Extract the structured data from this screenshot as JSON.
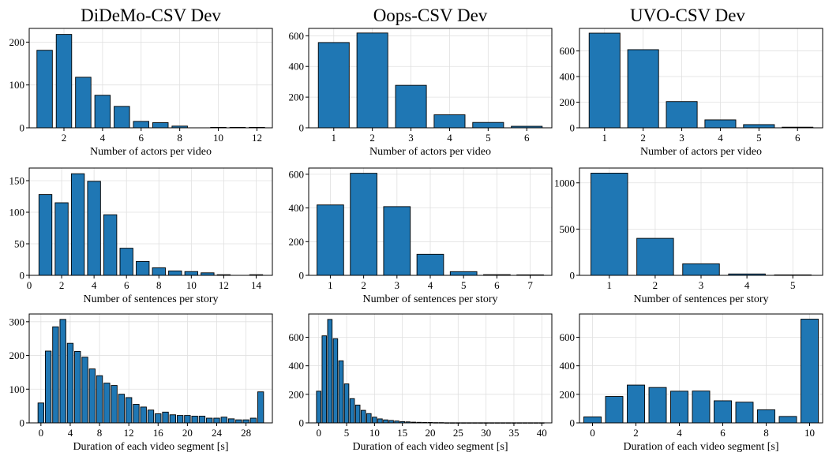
{
  "figure": {
    "column_titles": [
      "DiDeMo-CSV Dev",
      "Oops-CSV Dev",
      "UVO-CSV Dev"
    ]
  },
  "style": {
    "bar_color": "#1f77b4",
    "bar_edge": "#000000",
    "grid_color": "#e0e0e0"
  },
  "chart_data": [
    {
      "type": "bar",
      "title": "DiDeMo-CSV Dev",
      "xlabel": "Number of actors per video",
      "ylabel": "",
      "x": [
        1,
        2,
        3,
        4,
        5,
        6,
        7,
        8,
        9,
        10,
        11,
        12
      ],
      "values": [
        181,
        218,
        118,
        76,
        50,
        15,
        12,
        4,
        0,
        1,
        1,
        1
      ],
      "xlim": [
        0.2,
        12.8
      ],
      "ylim": [
        0,
        232
      ],
      "xticks": [
        2,
        4,
        6,
        8,
        10,
        12
      ],
      "yticks": [
        0,
        100,
        200
      ],
      "grid": true
    },
    {
      "type": "bar",
      "title": "Oops-CSV Dev",
      "xlabel": "Number of actors per video",
      "ylabel": "",
      "x": [
        1,
        2,
        3,
        4,
        5,
        6
      ],
      "values": [
        556,
        618,
        277,
        85,
        35,
        10
      ],
      "xlim": [
        0.35,
        6.65
      ],
      "ylim": [
        0,
        648
      ],
      "xticks": [
        1,
        2,
        3,
        4,
        5,
        6
      ],
      "yticks": [
        0,
        200,
        400,
        600
      ],
      "grid": true
    },
    {
      "type": "bar",
      "title": "UVO-CSV Dev",
      "xlabel": "Number of actors per video",
      "ylabel": "",
      "x": [
        1,
        2,
        3,
        4,
        5,
        6
      ],
      "values": [
        739,
        610,
        205,
        62,
        25,
        5
      ],
      "xlim": [
        0.35,
        6.65
      ],
      "ylim": [
        0,
        776
      ],
      "xticks": [
        1,
        2,
        3,
        4,
        5,
        6
      ],
      "yticks": [
        0,
        200,
        400,
        600
      ],
      "grid": true
    },
    {
      "type": "bar",
      "title": "",
      "xlabel": "Number of sentences per story",
      "ylabel": "",
      "x": [
        1,
        2,
        3,
        4,
        5,
        6,
        7,
        8,
        9,
        10,
        11,
        12,
        13,
        14
      ],
      "values": [
        128,
        115,
        161,
        149,
        96,
        43,
        22,
        12,
        7,
        6,
        4,
        1,
        0,
        1
      ],
      "xlim": [
        0,
        15
      ],
      "ylim": [
        0,
        170
      ],
      "xticks": [
        0,
        2,
        4,
        6,
        8,
        10,
        12,
        14
      ],
      "yticks": [
        0,
        50,
        100,
        150
      ],
      "grid": true
    },
    {
      "type": "bar",
      "title": "",
      "xlabel": "Number of sentences per story",
      "ylabel": "",
      "x": [
        1,
        2,
        3,
        4,
        5,
        6,
        7
      ],
      "values": [
        418,
        606,
        408,
        125,
        22,
        4,
        3
      ],
      "xlim": [
        0.35,
        7.65
      ],
      "ylim": [
        0,
        637
      ],
      "xticks": [
        1,
        2,
        3,
        4,
        5,
        6,
        7
      ],
      "yticks": [
        0,
        200,
        400,
        600
      ],
      "grid": true
    },
    {
      "type": "bar",
      "title": "",
      "xlabel": "Number of sentences per story",
      "ylabel": "",
      "x": [
        1,
        2,
        3,
        4,
        5
      ],
      "values": [
        1105,
        400,
        125,
        15,
        5
      ],
      "xlim": [
        0.35,
        5.65
      ],
      "ylim": [
        0,
        1160
      ],
      "xticks": [
        1,
        2,
        3,
        4,
        5
      ],
      "yticks": [
        0,
        500,
        1000
      ],
      "grid": true
    },
    {
      "type": "bar",
      "title": "",
      "xlabel": "Duration of each video segment [s]",
      "ylabel": "",
      "x": [
        0,
        1,
        2,
        3,
        4,
        5,
        6,
        7,
        8,
        9,
        10,
        11,
        12,
        13,
        14,
        15,
        16,
        17,
        18,
        19,
        20,
        21,
        22,
        23,
        24,
        25,
        26,
        27,
        28,
        29,
        30
      ],
      "values": [
        59,
        213,
        285,
        307,
        236,
        212,
        195,
        160,
        140,
        118,
        111,
        85,
        75,
        55,
        47,
        38,
        27,
        32,
        24,
        22,
        22,
        20,
        20,
        14,
        14,
        17,
        12,
        9,
        9,
        14,
        92
      ],
      "xlim": [
        -1.6,
        31.6
      ],
      "ylim": [
        0,
        323
      ],
      "xticks": [
        0,
        4,
        8,
        12,
        16,
        20,
        24,
        28
      ],
      "yticks": [
        0,
        100,
        200,
        300
      ],
      "grid": true
    },
    {
      "type": "bar",
      "title": "",
      "xlabel": "Duration of each video segment [s]",
      "ylabel": "",
      "x": [
        0,
        1,
        2,
        3,
        4,
        5,
        6,
        7,
        8,
        9,
        10,
        11,
        12,
        13,
        14,
        15,
        16,
        17,
        18,
        19,
        20,
        21,
        22,
        23,
        24,
        25,
        26,
        27,
        28,
        29,
        30,
        31,
        32,
        33,
        34,
        35,
        36,
        37,
        38,
        39,
        40
      ],
      "values": [
        222,
        610,
        725,
        590,
        435,
        273,
        170,
        125,
        88,
        65,
        40,
        28,
        21,
        17,
        13,
        9,
        7,
        5,
        4,
        3,
        3,
        2,
        2,
        1,
        1,
        1,
        1,
        1,
        1,
        1,
        1,
        1,
        1,
        1,
        1,
        1,
        1,
        1,
        1,
        1,
        1
      ],
      "xlim": [
        -1.8,
        41.8
      ],
      "ylim": [
        0,
        763
      ],
      "xticks": [
        0,
        5,
        10,
        15,
        20,
        25,
        30,
        35,
        40
      ],
      "yticks": [
        0,
        200,
        400,
        600
      ],
      "grid": true
    },
    {
      "type": "bar",
      "title": "",
      "xlabel": "Duration of each video segment [s]",
      "ylabel": "",
      "x": [
        0,
        1,
        2,
        3,
        4,
        5,
        6,
        7,
        8,
        9,
        10
      ],
      "values": [
        42,
        185,
        265,
        248,
        222,
        223,
        155,
        145,
        92,
        45,
        727
      ],
      "xlim": [
        -0.6,
        10.6
      ],
      "ylim": [
        0,
        763
      ],
      "xticks": [
        0,
        2,
        4,
        6,
        8,
        10
      ],
      "yticks": [
        0,
        200,
        400,
        600
      ],
      "grid": true
    }
  ]
}
